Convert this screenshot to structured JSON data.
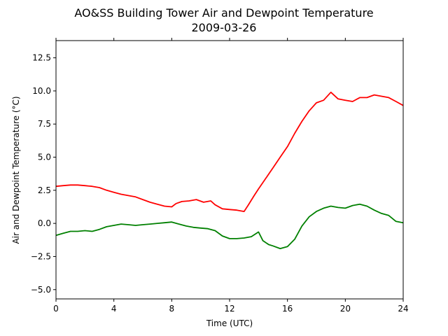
{
  "chart_data": {
    "type": "line",
    "title": "AO&SS Building Tower Air and Dewpoint Temperature",
    "subtitle": "2009-03-26",
    "xlabel": "Time (UTC)",
    "ylabel": "Air and Dewpoint Temperature (°C)",
    "xlim": [
      0,
      24
    ],
    "ylim": [
      -5.7,
      13.8
    ],
    "xticks": [
      0,
      4,
      8,
      12,
      16,
      20,
      24
    ],
    "xtick_labels": [
      "0",
      "4",
      "8",
      "12",
      "16",
      "20",
      "24"
    ],
    "yticks": [
      -5.0,
      -2.5,
      0.0,
      2.5,
      5.0,
      7.5,
      10.0,
      12.5
    ],
    "ytick_labels": [
      "−5.0",
      "−2.5",
      "0.0",
      "2.5",
      "5.0",
      "7.5",
      "10.0",
      "12.5"
    ],
    "grid": false,
    "series": [
      {
        "color": "#ff0000",
        "points": [
          [
            0.0,
            2.8
          ],
          [
            0.5,
            2.85
          ],
          [
            1.0,
            2.9
          ],
          [
            1.5,
            2.9
          ],
          [
            2.0,
            2.85
          ],
          [
            2.5,
            2.8
          ],
          [
            3.0,
            2.7
          ],
          [
            3.5,
            2.5
          ],
          [
            4.0,
            2.35
          ],
          [
            4.5,
            2.2
          ],
          [
            5.0,
            2.1
          ],
          [
            5.5,
            2.0
          ],
          [
            6.0,
            1.8
          ],
          [
            6.5,
            1.6
          ],
          [
            7.0,
            1.45
          ],
          [
            7.5,
            1.3
          ],
          [
            8.0,
            1.25
          ],
          [
            8.3,
            1.5
          ],
          [
            8.7,
            1.65
          ],
          [
            9.2,
            1.7
          ],
          [
            9.7,
            1.8
          ],
          [
            10.2,
            1.6
          ],
          [
            10.7,
            1.7
          ],
          [
            11.0,
            1.4
          ],
          [
            11.5,
            1.1
          ],
          [
            12.0,
            1.05
          ],
          [
            12.5,
            1.0
          ],
          [
            13.0,
            0.9
          ],
          [
            13.3,
            1.4
          ],
          [
            13.7,
            2.1
          ],
          [
            14.0,
            2.6
          ],
          [
            14.5,
            3.4
          ],
          [
            15.0,
            4.2
          ],
          [
            15.5,
            5.0
          ],
          [
            16.0,
            5.8
          ],
          [
            16.5,
            6.8
          ],
          [
            17.0,
            7.7
          ],
          [
            17.5,
            8.5
          ],
          [
            18.0,
            9.1
          ],
          [
            18.5,
            9.3
          ],
          [
            19.0,
            9.9
          ],
          [
            19.5,
            9.4
          ],
          [
            20.0,
            9.3
          ],
          [
            20.5,
            9.2
          ],
          [
            21.0,
            9.5
          ],
          [
            21.5,
            9.5
          ],
          [
            22.0,
            9.7
          ],
          [
            22.5,
            9.6
          ],
          [
            23.0,
            9.5
          ],
          [
            23.5,
            9.2
          ],
          [
            24.0,
            8.9
          ]
        ]
      },
      {
        "color": "#008000",
        "points": [
          [
            0.0,
            -0.9
          ],
          [
            0.5,
            -0.75
          ],
          [
            1.0,
            -0.6
          ],
          [
            1.5,
            -0.6
          ],
          [
            2.0,
            -0.55
          ],
          [
            2.5,
            -0.6
          ],
          [
            3.0,
            -0.45
          ],
          [
            3.5,
            -0.25
          ],
          [
            4.0,
            -0.15
          ],
          [
            4.5,
            -0.05
          ],
          [
            5.0,
            -0.1
          ],
          [
            5.5,
            -0.15
          ],
          [
            6.0,
            -0.1
          ],
          [
            6.5,
            -0.05
          ],
          [
            7.0,
            0.0
          ],
          [
            7.5,
            0.05
          ],
          [
            8.0,
            0.1
          ],
          [
            8.5,
            -0.05
          ],
          [
            9.0,
            -0.2
          ],
          [
            9.5,
            -0.3
          ],
          [
            10.0,
            -0.35
          ],
          [
            10.5,
            -0.4
          ],
          [
            11.0,
            -0.55
          ],
          [
            11.5,
            -0.95
          ],
          [
            12.0,
            -1.15
          ],
          [
            12.5,
            -1.15
          ],
          [
            13.0,
            -1.1
          ],
          [
            13.5,
            -1.0
          ],
          [
            14.0,
            -0.65
          ],
          [
            14.3,
            -1.3
          ],
          [
            14.7,
            -1.6
          ],
          [
            15.0,
            -1.7
          ],
          [
            15.5,
            -1.9
          ],
          [
            16.0,
            -1.75
          ],
          [
            16.5,
            -1.2
          ],
          [
            17.0,
            -0.2
          ],
          [
            17.5,
            0.5
          ],
          [
            18.0,
            0.9
          ],
          [
            18.5,
            1.15
          ],
          [
            19.0,
            1.3
          ],
          [
            19.5,
            1.2
          ],
          [
            20.0,
            1.15
          ],
          [
            20.5,
            1.35
          ],
          [
            21.0,
            1.45
          ],
          [
            21.5,
            1.3
          ],
          [
            22.0,
            1.0
          ],
          [
            22.5,
            0.75
          ],
          [
            23.0,
            0.6
          ],
          [
            23.5,
            0.15
          ],
          [
            24.0,
            0.05
          ]
        ]
      }
    ]
  }
}
